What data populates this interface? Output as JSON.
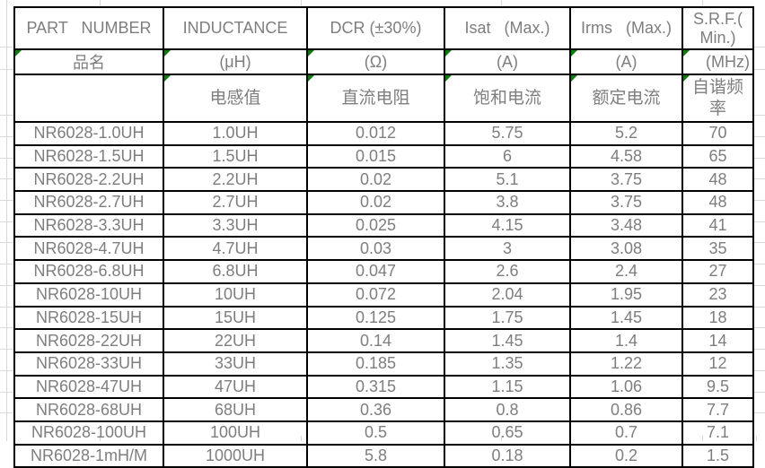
{
  "colors": {
    "flag_green": "#0d7d0d",
    "text_gray": "#7e7e7e",
    "border_black": "#000000",
    "gridline_gray": "#d8d8d8"
  },
  "table": {
    "header_en": [
      "PART   NUMBER",
      "INDUCTANCE",
      "DCR (±30%)",
      "Isat   (Max.)",
      "Irms   (Max.)",
      "S.R.F.( Min.)"
    ],
    "header_unit": [
      "品名",
      "(μH)",
      "(Ω)",
      "(A)",
      "(A)",
      "(MHz)"
    ],
    "header_cn": [
      "",
      "电感值",
      "直流电阻",
      "饱和电流",
      "额定电流",
      "自谐频率"
    ],
    "rows": [
      [
        "NR6028-1.0UH",
        "1.0UH",
        "0.012",
        "5.75",
        "5.2",
        "70"
      ],
      [
        "NR6028-1.5UH",
        "1.5UH",
        "0.015",
        "6",
        "4.58",
        "65"
      ],
      [
        "NR6028-2.2UH",
        "2.2UH",
        "0.02",
        "5.1",
        "3.75",
        "48"
      ],
      [
        "NR6028-2.7UH",
        "2.7UH",
        "0.02",
        "3.8",
        "3.75",
        "48"
      ],
      [
        "NR6028-3.3UH",
        "3.3UH",
        "0.025",
        "4.15",
        "3.48",
        "41"
      ],
      [
        "NR6028-4.7UH",
        "4.7UH",
        "0.03",
        "3",
        "3.08",
        "35"
      ],
      [
        "NR6028-6.8UH",
        "6.8UH",
        "0.047",
        "2.6",
        "2.4",
        "27"
      ],
      [
        "NR6028-10UH",
        "10UH",
        "0.072",
        "2.04",
        "1.95",
        "23"
      ],
      [
        "NR6028-15UH",
        "15UH",
        "0.125",
        "1.75",
        "1.45",
        "18"
      ],
      [
        "NR6028-22UH",
        "22UH",
        "0.14",
        "1.45",
        "1.4",
        "14"
      ],
      [
        "NR6028-33UH",
        "33UH",
        "0.185",
        "1.35",
        "1.22",
        "12"
      ],
      [
        "NR6028-47UH",
        "47UH",
        "0.315",
        "1.15",
        "1.06",
        "9.5"
      ],
      [
        "NR6028-68UH",
        "68UH",
        "0.36",
        "0.8",
        "0.86",
        "7.7"
      ],
      [
        "NR6028-100UH",
        "100UH",
        "0.5",
        "0.65",
        "0.7",
        "7.1"
      ],
      [
        "NR6028-1mH/M",
        "1000UH",
        "5.8",
        "0.18",
        "0.2",
        "1.5"
      ]
    ],
    "column_names": [
      "part-number",
      "inductance",
      "dcr",
      "isat",
      "irms",
      "srf"
    ]
  }
}
